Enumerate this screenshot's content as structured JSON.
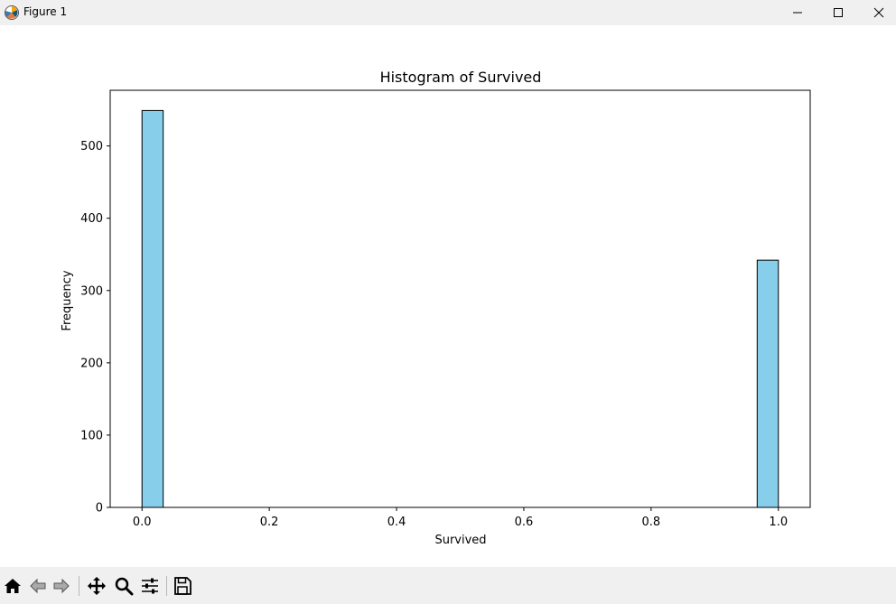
{
  "window": {
    "title": "Figure 1",
    "controls": [
      "minimize",
      "maximize",
      "close"
    ]
  },
  "toolbar": {
    "tools": [
      {
        "name": "home",
        "icon": "home-icon"
      },
      {
        "name": "back",
        "icon": "back-arrow-icon"
      },
      {
        "name": "forward",
        "icon": "forward-arrow-icon"
      },
      {
        "name": "pan",
        "icon": "move-icon"
      },
      {
        "name": "zoom",
        "icon": "zoom-icon"
      },
      {
        "name": "configure-subplots",
        "icon": "sliders-icon"
      },
      {
        "name": "save",
        "icon": "save-icon"
      }
    ]
  },
  "chart_data": {
    "type": "bar",
    "title": "Histogram of Survived",
    "xlabel": "Survived",
    "ylabel": "Frequency",
    "xlim": [
      -0.05,
      1.05
    ],
    "ylim": [
      0,
      577
    ],
    "xticks": [
      "0.0",
      "0.2",
      "0.4",
      "0.6",
      "0.8",
      "1.0"
    ],
    "yticks": [
      "0",
      "100",
      "200",
      "300",
      "400",
      "500"
    ],
    "bins": [
      {
        "x0": 0.0,
        "x1": 0.0333,
        "count": 549
      },
      {
        "x0": 0.9667,
        "x1": 1.0,
        "count": 342
      }
    ],
    "bar_color": "#87ceeb",
    "edge_color": "#000000",
    "grid": false,
    "legend": null
  }
}
